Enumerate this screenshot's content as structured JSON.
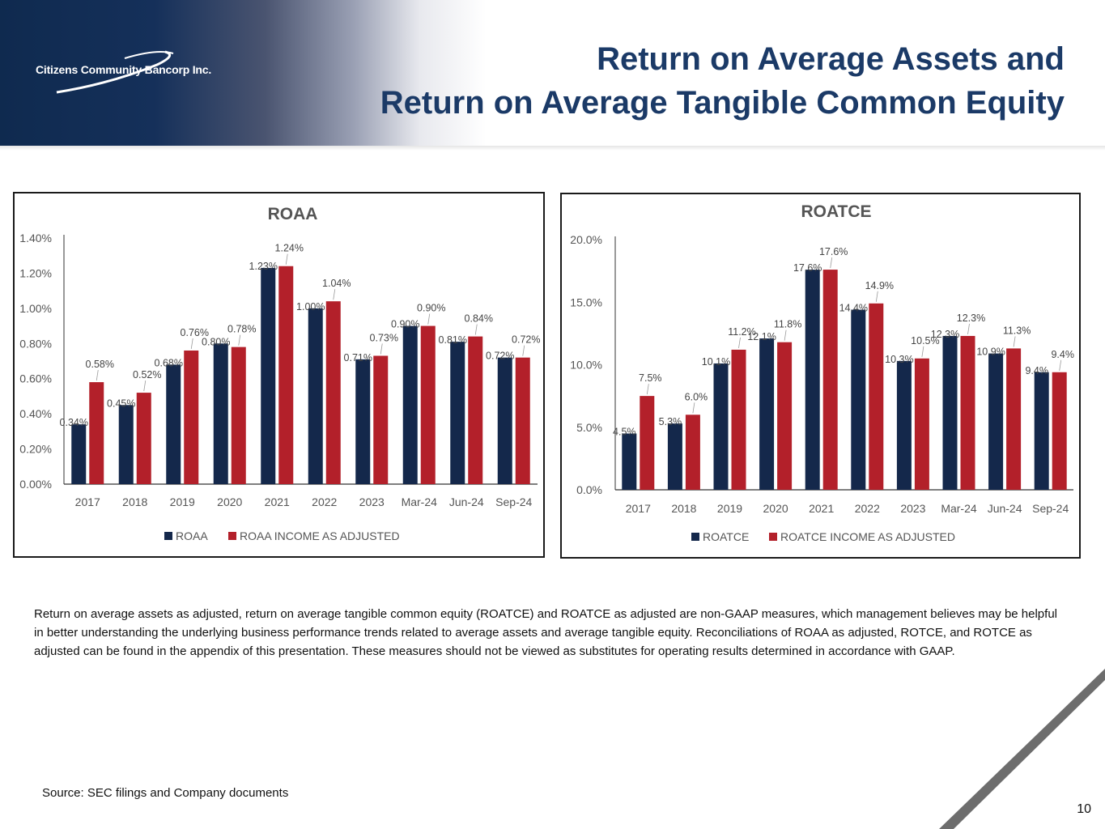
{
  "header": {
    "logo_text": "Citizens Community Bancorp Inc.",
    "title_line1": "Return on Average Assets and",
    "title_line2": "Return on Average Tangible Common Equity"
  },
  "colors": {
    "navy": "#14284b",
    "red": "#b3202a",
    "title": "#1b3a67"
  },
  "chart_data": [
    {
      "type": "bar",
      "title": "ROAA",
      "categories": [
        "2017",
        "2018",
        "2019",
        "2020",
        "2021",
        "2022",
        "2023",
        "Mar-24",
        "Jun-24",
        "Sep-24"
      ],
      "series": [
        {
          "name": "ROAA",
          "color": "#14284b",
          "values": [
            0.34,
            0.45,
            0.68,
            0.8,
            1.23,
            1.0,
            0.71,
            0.9,
            0.81,
            0.72
          ],
          "labels": [
            "0.34%",
            "0.45%",
            "0.68%",
            "0.80%",
            "1.23%",
            "1.00%",
            "0.71%",
            "0.90%",
            "0.81%",
            "0.72%"
          ]
        },
        {
          "name": "ROAA INCOME AS ADJUSTED",
          "color": "#b3202a",
          "values": [
            0.58,
            0.52,
            0.76,
            0.78,
            1.24,
            1.04,
            0.73,
            0.9,
            0.84,
            0.72
          ],
          "labels": [
            "0.58%",
            "0.52%",
            "0.76%",
            "0.78%",
            "1.24%",
            "1.04%",
            "0.73%",
            "0.90%",
            "0.84%",
            "0.72%"
          ]
        }
      ],
      "ylim": [
        0,
        1.4
      ],
      "yticks": [
        0,
        0.2,
        0.4,
        0.6,
        0.8,
        1.0,
        1.2,
        1.4
      ],
      "ytick_labels": [
        "0.00%",
        "0.20%",
        "0.40%",
        "0.60%",
        "0.80%",
        "1.00%",
        "1.20%",
        "1.40%"
      ],
      "legend": "bottom",
      "grid": false
    },
    {
      "type": "bar",
      "title": "ROATCE",
      "categories": [
        "2017",
        "2018",
        "2019",
        "2020",
        "2021",
        "2022",
        "2023",
        "Mar-24",
        "Jun-24",
        "Sep-24"
      ],
      "series": [
        {
          "name": "ROATCE",
          "color": "#14284b",
          "values": [
            4.5,
            5.3,
            10.1,
            12.1,
            17.6,
            14.4,
            10.3,
            12.3,
            10.9,
            9.4
          ],
          "labels": [
            "4.5%",
            "5.3%",
            "10.1%",
            "12.1%",
            "17.6%",
            "14.4%",
            "10.3%",
            "12.3%",
            "10.9%",
            "9.4%"
          ]
        },
        {
          "name": "ROATCE INCOME AS ADJUSTED",
          "color": "#b3202a",
          "values": [
            7.5,
            6.0,
            11.2,
            11.8,
            17.6,
            14.9,
            10.5,
            12.3,
            11.3,
            9.4
          ],
          "labels": [
            "7.5%",
            "6.0%",
            "11.2%",
            "11.8%",
            "17.6%",
            "14.9%",
            "10.5%",
            "12.3%",
            "11.3%",
            "9.4%"
          ]
        }
      ],
      "ylim": [
        0,
        20
      ],
      "yticks": [
        0,
        5,
        10,
        15,
        20
      ],
      "ytick_labels": [
        "0.0%",
        "5.0%",
        "10.0%",
        "15.0%",
        "20.0%"
      ],
      "legend": "bottom",
      "grid": false
    }
  ],
  "notes": {
    "paragraph": "Return on average assets as adjusted, return on average tangible common equity (ROATCE) and ROATCE as adjusted are non-GAAP measures, which management believes may be helpful in better understanding the underlying business performance trends related to average assets and average tangible equity. Reconciliations of ROAA as adjusted, ROTCE, and ROTCE as adjusted can be found in the appendix of this presentation. These measures should not be viewed as substitutes for operating results determined in accordance with GAAP."
  },
  "source": "Source: SEC filings and Company documents",
  "page_number": "10"
}
